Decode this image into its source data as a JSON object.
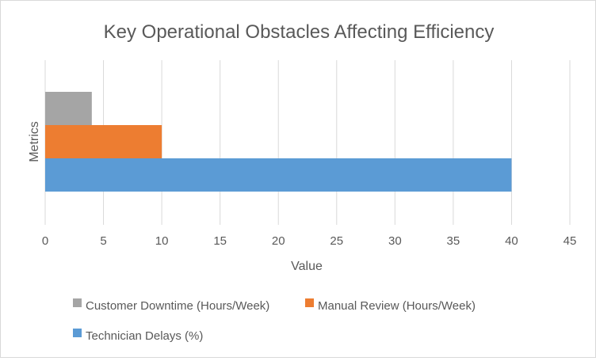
{
  "chart_data": {
    "type": "bar",
    "orientation": "horizontal",
    "title": "Key Operational Obstacles Affecting Efficiency",
    "xlabel": "Value",
    "ylabel": "Metrics",
    "xlim": [
      0,
      45
    ],
    "xticks": [
      0,
      5,
      10,
      15,
      20,
      25,
      30,
      35,
      40,
      45
    ],
    "grid": "vertical",
    "legend_position": "bottom",
    "categories": [
      "Metrics"
    ],
    "series": [
      {
        "name": "Customer Downtime (Hours/Week)",
        "values": [
          4
        ],
        "color": "#a5a5a5"
      },
      {
        "name": "Manual Review (Hours/Week)",
        "values": [
          10
        ],
        "color": "#ed7d31"
      },
      {
        "name": "Technician Delays (%)",
        "values": [
          40
        ],
        "color": "#5b9bd5"
      }
    ]
  }
}
